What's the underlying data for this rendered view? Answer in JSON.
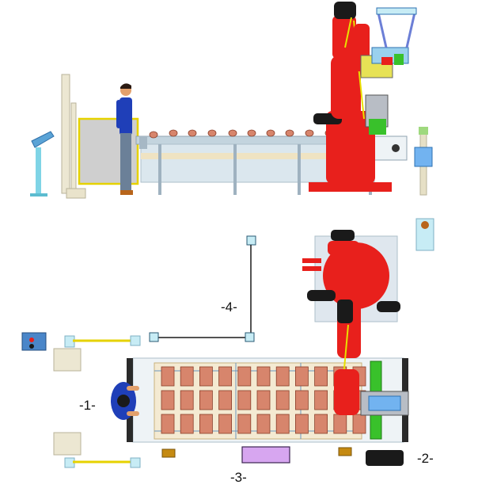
{
  "diagram": {
    "callouts": [
      {
        "id": "1",
        "label": "-1-"
      },
      {
        "id": "2",
        "label": "-2-"
      },
      {
        "id": "3",
        "label": "-3-"
      },
      {
        "id": "4",
        "label": "-4-"
      }
    ],
    "colors": {
      "robot": "#e8201c",
      "robot_dark": "#1a1a1a",
      "conveyor_frame": "#dbe7ee",
      "conveyor_rail": "#aebfca",
      "belt_band": "#efe3c2",
      "operator_shirt": "#1f3fb8",
      "guard_panel": "#c9c9c9",
      "guard_frame": "#e6d200",
      "cushion": "#d7856c",
      "cable": "#e8e000",
      "fixture_green": "#39c12b",
      "sensor_cyan": "#c7ecf5",
      "control_panel": "#4a86c9",
      "purple_box": "#d7a6f0",
      "orange_box": "#c58a12"
    }
  }
}
